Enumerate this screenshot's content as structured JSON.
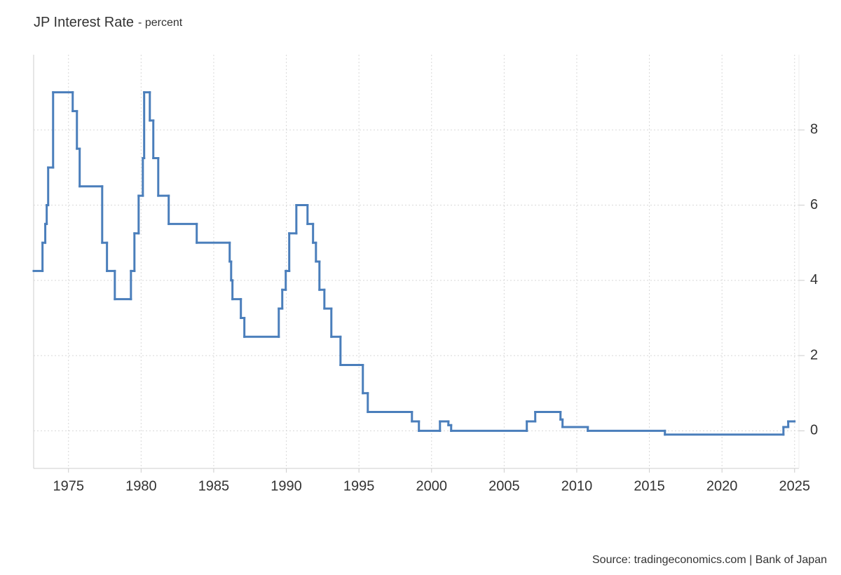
{
  "chart_data": {
    "type": "line",
    "step": true,
    "title": "JP Interest Rate",
    "subtitle": "- percent",
    "source": "Source: tradingeconomics.com | Bank of Japan",
    "x": [
      1972.6,
      1973.21,
      1973.4,
      1973.5,
      1973.6,
      1973.94,
      1975.29,
      1975.58,
      1975.77,
      1977.32,
      1977.65,
      1978.19,
      1979.3,
      1979.54,
      1979.83,
      1980.12,
      1980.21,
      1980.6,
      1980.84,
      1981.18,
      1981.9,
      1983.83,
      1986.1,
      1986.2,
      1986.29,
      1986.87,
      1987.11,
      1989.48,
      1989.72,
      1989.96,
      1990.2,
      1990.69,
      1991.46,
      1991.84,
      1992.04,
      1992.28,
      1992.62,
      1993.1,
      1993.73,
      1995.27,
      1995.61,
      1998.65,
      1999.13,
      2000.58,
      2001.16,
      2001.35,
      2006.56,
      2007.14,
      2008.88,
      2009.02,
      2010.76,
      2016.07,
      2024.23,
      2024.56,
      2024.99
    ],
    "series": [
      {
        "name": "JP Interest Rate",
        "color": "#4a7ebb",
        "values": [
          4.25,
          5.0,
          5.5,
          6.0,
          7.0,
          9.0,
          8.5,
          7.5,
          6.5,
          5.0,
          4.25,
          3.5,
          4.25,
          5.25,
          6.25,
          7.25,
          9.0,
          8.25,
          7.25,
          6.25,
          5.5,
          5.0,
          4.5,
          4.0,
          3.5,
          3.0,
          2.5,
          3.25,
          3.75,
          4.25,
          5.25,
          6.0,
          5.5,
          5.0,
          4.5,
          3.75,
          3.25,
          2.5,
          1.75,
          1.0,
          0.5,
          0.25,
          0.0,
          0.25,
          0.15,
          0.0,
          0.25,
          0.5,
          0.3,
          0.1,
          0.0,
          -0.1,
          0.1,
          0.25,
          0.25
        ]
      }
    ],
    "xlim": [
      1972.6,
      2025.3
    ],
    "ylim": [
      -1,
      10
    ],
    "xticks": [
      1975,
      1980,
      1985,
      1990,
      1995,
      2000,
      2005,
      2010,
      2015,
      2020,
      2025
    ],
    "yticks": [
      0,
      2,
      4,
      6,
      8
    ],
    "grid": true,
    "y_axis_side": "right"
  }
}
